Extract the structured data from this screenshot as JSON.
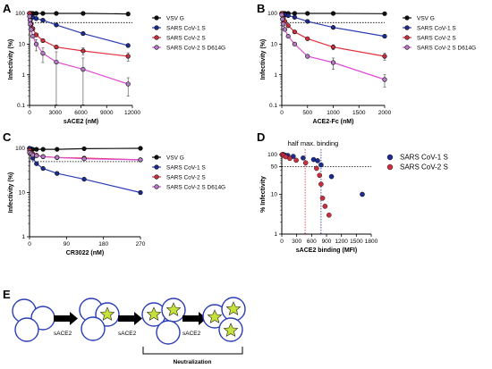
{
  "panels": {
    "a": "A",
    "b": "B",
    "c": "C",
    "d": "D",
    "e": "E"
  },
  "chart_data": [
    {
      "id": "A",
      "type": "line",
      "xlabel": "sACE2 (nM)",
      "ylabel": "Infectivity (%)",
      "xlim": [
        0,
        12000
      ],
      "xticks": [
        0,
        3000,
        6000,
        9000,
        12000
      ],
      "ylog": true,
      "ylim": [
        0.1,
        100
      ],
      "yticks": [
        0.1,
        1,
        10,
        100
      ],
      "yticklabels": [
        "0.1",
        "1",
        "10",
        "100"
      ],
      "ref_line": 50,
      "legend": "right",
      "series": [
        {
          "name": "VSV G",
          "color": "#111111",
          "marker": "#111111",
          "x": [
            0,
            50,
            100,
            200,
            390,
            780,
            1560,
            3125,
            6250,
            11500
          ],
          "y": [
            100,
            100,
            100,
            100,
            100,
            100,
            100,
            100,
            100,
            96
          ],
          "err": [
            0,
            0,
            0,
            0,
            0,
            0,
            0,
            0,
            0,
            0
          ]
        },
        {
          "name": "SARS CoV-1 S",
          "color": "#2b3db4",
          "marker": "#1e2c8f",
          "x": [
            0,
            50,
            100,
            200,
            390,
            780,
            1560,
            3125,
            6250,
            11500
          ],
          "y": [
            100,
            92,
            88,
            82,
            75,
            68,
            60,
            42,
            22,
            9
          ],
          "err": [
            0,
            0,
            0,
            0,
            0,
            0,
            0,
            0,
            0,
            0
          ]
        },
        {
          "name": "SARS CoV-2 S",
          "color": "#e0303c",
          "marker": "#c83040",
          "x": [
            0,
            50,
            100,
            200,
            390,
            780,
            1560,
            3125,
            6250,
            11500
          ],
          "y": [
            100,
            80,
            60,
            45,
            32,
            20,
            13,
            8,
            6,
            4
          ],
          "err": [
            0,
            0,
            0,
            0,
            0,
            0,
            0,
            0,
            1.5,
            1.2
          ]
        },
        {
          "name": "SARS CoV-2 S D614G",
          "color": "#e04ad8",
          "marker": "#b07ec0",
          "x": [
            0,
            50,
            100,
            200,
            390,
            780,
            1560,
            3125,
            6250,
            11500
          ],
          "y": [
            80,
            60,
            45,
            30,
            18,
            10,
            5,
            2.6,
            1.5,
            0.5
          ],
          "err": [
            0,
            0,
            0,
            0,
            0,
            4,
            2.5,
            3,
            2,
            0.3
          ]
        }
      ]
    },
    {
      "id": "B",
      "type": "line",
      "xlabel": "ACE2-Fc (nM)",
      "ylabel": "Infectivity (%)",
      "xlim": [
        0,
        2000
      ],
      "xticks": [
        0,
        500,
        1000,
        1500,
        2000
      ],
      "ylog": true,
      "ylim": [
        0.1,
        100
      ],
      "yticks": [
        0.1,
        1,
        10,
        100
      ],
      "yticklabels": [
        "0.1",
        "1",
        "10",
        "100"
      ],
      "ref_line": 50,
      "legend": "right",
      "series": [
        {
          "name": "VSV G",
          "color": "#111111",
          "marker": "#111111",
          "x": [
            0,
            15,
            30,
            60,
            125,
            250,
            500,
            1000,
            2000
          ],
          "y": [
            100,
            100,
            100,
            100,
            100,
            100,
            100,
            100,
            98
          ],
          "err": [
            0,
            0,
            0,
            0,
            0,
            0,
            0,
            0,
            0
          ]
        },
        {
          "name": "SARS CoV-1 S",
          "color": "#2b3db4",
          "marker": "#1e2c8f",
          "x": [
            0,
            15,
            30,
            60,
            125,
            250,
            500,
            1000,
            2000
          ],
          "y": [
            100,
            95,
            92,
            88,
            85,
            75,
            55,
            35,
            18
          ],
          "err": [
            0,
            0,
            0,
            0,
            0,
            0,
            0,
            0,
            0
          ]
        },
        {
          "name": "SARS CoV-2 S",
          "color": "#e0303c",
          "marker": "#c83040",
          "x": [
            0,
            15,
            30,
            60,
            125,
            250,
            500,
            1000,
            2000
          ],
          "y": [
            100,
            85,
            70,
            55,
            40,
            25,
            15,
            8,
            4
          ],
          "err": [
            0,
            0,
            0,
            0,
            0,
            0,
            0,
            1.5,
            1
          ]
        },
        {
          "name": "SARS CoV-2 S D614G",
          "color": "#e04ad8",
          "marker": "#b07ec0",
          "x": [
            0,
            15,
            30,
            60,
            125,
            250,
            500,
            1000,
            2000
          ],
          "y": [
            90,
            65,
            45,
            30,
            18,
            10,
            4,
            2.5,
            0.7
          ],
          "err": [
            0,
            0,
            0,
            0,
            0,
            0,
            0,
            1,
            0.3
          ]
        }
      ]
    },
    {
      "id": "C",
      "type": "line",
      "xlabel": "CR3022 (nM)",
      "ylabel": "Infectivity (%)",
      "xlim": [
        0,
        270
      ],
      "xticks": [
        0,
        90,
        180,
        270
      ],
      "ylog": true,
      "ylim": [
        1,
        100
      ],
      "yticks": [
        1,
        10,
        100
      ],
      "yticklabels": [
        "1",
        "10",
        "100"
      ],
      "ref_line": 50,
      "legend": "right",
      "series": [
        {
          "name": "VSV G",
          "color": "#111111",
          "marker": "#111111",
          "x": [
            0,
            4,
            8,
            17,
            33,
            67,
            133,
            270
          ],
          "y": [
            100,
            97,
            95,
            95,
            95,
            95,
            98,
            100
          ],
          "err": [
            0,
            0,
            0,
            0,
            0,
            0,
            0,
            0
          ]
        },
        {
          "name": "SARS CoV-1 S",
          "color": "#2b3db4",
          "marker": "#1e2c8f",
          "x": [
            0,
            4,
            8,
            17,
            33,
            67,
            133,
            270
          ],
          "y": [
            100,
            75,
            60,
            45,
            35,
            27,
            20,
            10
          ],
          "err": [
            0,
            0,
            0,
            0,
            0,
            0,
            0,
            0
          ]
        },
        {
          "name": "SARS CoV-2 S",
          "color": "#e0303c",
          "marker": "#c83040",
          "x": [
            0,
            4,
            8,
            17,
            33,
            67,
            133,
            270
          ],
          "y": [
            90,
            80,
            75,
            70,
            65,
            62,
            60,
            55
          ],
          "err": [
            8,
            5,
            0,
            0,
            0,
            0,
            0,
            0
          ]
        },
        {
          "name": "SARS CoV-2 S D614G",
          "color": "#e04ad8",
          "marker": "#b07ec0",
          "x": [
            0,
            4,
            8,
            17,
            33,
            67,
            133,
            270
          ],
          "y": [
            80,
            75,
            70,
            68,
            65,
            62,
            58,
            55
          ],
          "err": [
            10,
            5,
            0,
            0,
            0,
            0,
            0,
            0
          ]
        }
      ]
    },
    {
      "id": "D",
      "type": "scatter",
      "xlabel": "sACE2 binding (MFI)",
      "ylabel": "% Infectivity",
      "xlim": [
        0,
        1800
      ],
      "xticks": [
        0,
        300,
        600,
        900,
        1200,
        1500,
        1800
      ],
      "ylog": true,
      "ylim": [
        1,
        100
      ],
      "yticks": [
        1,
        10,
        50,
        100
      ],
      "yticklabels": [
        "1",
        "10",
        "50",
        "100"
      ],
      "ref_line": 50,
      "half_max_label": "half max. binding",
      "half_max_x": [
        470,
        790
      ],
      "legend": "right",
      "series": [
        {
          "name": "SARS CoV-1 S",
          "color": "#1e2c8f",
          "x": [
            10,
            30,
            60,
            120,
            230,
            430,
            640,
            720,
            790,
            1000,
            1620
          ],
          "y": [
            100,
            100,
            97,
            95,
            90,
            82,
            75,
            70,
            55,
            28,
            10
          ],
          "err": []
        },
        {
          "name": "SARS CoV-2 S",
          "color": "#c83040",
          "x": [
            10,
            40,
            80,
            160,
            290,
            480,
            700,
            760,
            790,
            820,
            870,
            950
          ],
          "y": [
            100,
            95,
            88,
            80,
            72,
            62,
            45,
            30,
            18,
            8,
            5,
            3
          ],
          "err": []
        }
      ]
    }
  ],
  "diagram_e": {
    "steps": [
      "sACE2",
      "sACE2",
      "sACE2"
    ],
    "bracket_label": "Neutralization"
  }
}
